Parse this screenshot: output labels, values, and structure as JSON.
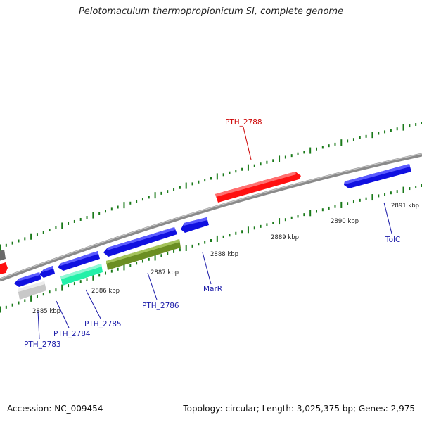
{
  "title": "Pelotomaculum thermopropionicum SI, complete genome",
  "footer": {
    "accession": "Accession: NC_009454",
    "topology": "Topology: circular; Length: 3,025,375 bp; Genes: 2,975"
  },
  "colors": {
    "backbone": "#8a8a8a",
    "tick": "#1a7a1a",
    "forward_label": "#cc0000",
    "reverse_label": "#1a1aa8",
    "scale_label": "#222222",
    "gene_blue": "#1010e0",
    "gene_red": "#ff1010",
    "gene_olive": "#6b8e23",
    "gene_mint": "#22f0a8",
    "gene_grey": "#c8c8c8"
  },
  "scale_labels": [
    "2885 kbp",
    "2886 kbp",
    "2887 kbp",
    "2888 kbp",
    "2889 kbp",
    "2890 kbp",
    "2891 kbp"
  ],
  "gene_labels": [
    "PTH_2788",
    "MarR",
    "TolC",
    "PTH_2786",
    "PTH_2785",
    "PTH_2784",
    "PTH_2783"
  ]
}
